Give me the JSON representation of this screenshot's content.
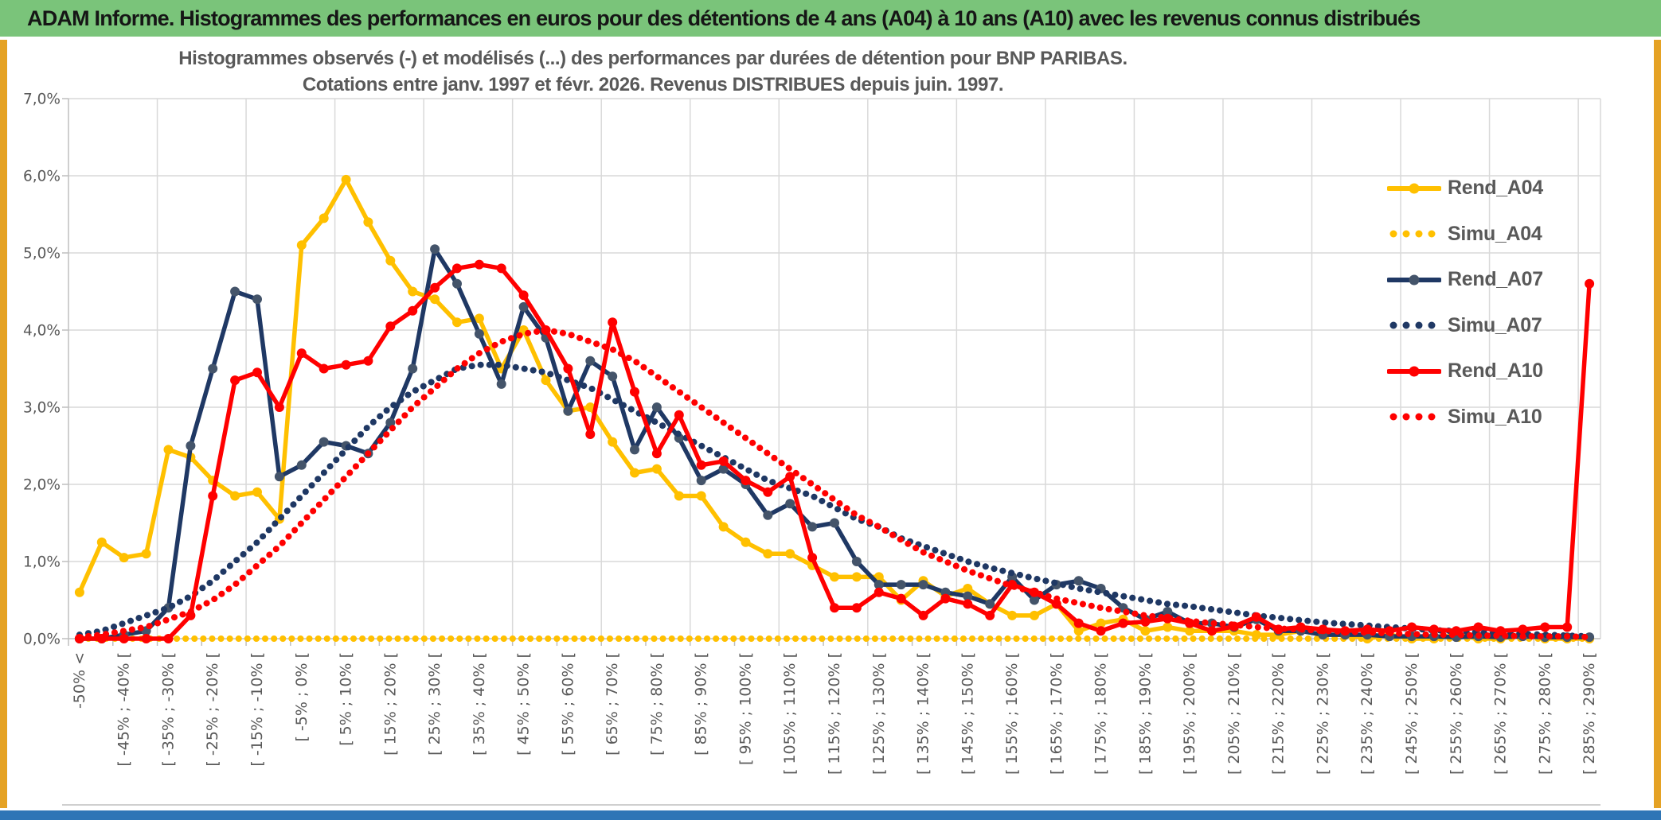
{
  "page": {
    "header_title": "ADAM Informe. Histogrammes des performances en euros pour des détentions de 4 ans (A04) à 10 ans (A10) avec les revenus connus distribués",
    "header_bg_color": "#7AC47A",
    "frame_color": "#E5A224",
    "footer_bar_color": "#2E75B6"
  },
  "chart_data": {
    "type": "line",
    "title_line1": "Histogrammes observés (-) et modélisés (...) des performances par durées de détention pour BNP PARIBAS.",
    "title_line2": "Cotations entre janv. 1997 et févr. 2026. Revenus DISTRIBUES depuis juin. 1997.",
    "ylabel": "",
    "xlabel": "",
    "ylim": [
      0,
      7
    ],
    "grid": true,
    "legend_position": "right",
    "y_ticks": [
      "7,0%",
      "6,0%",
      "5,0%",
      "4,0%",
      "3,0%",
      "2,0%",
      "1,0%",
      "0,0%"
    ],
    "x_bins_note": "69 bins of 5% width from below -50% up to 290%; a tick label is shown for every second bin",
    "n_points": 69,
    "x_tick_labels": [
      "-50% <",
      "[ -45% ; -40% [",
      "[ -35% ; -30% [",
      "[ -25% ; -20% [",
      "[ -15% ; -10% [",
      "[ -5% ; 0% [",
      "[ 5% ; 10% [",
      "[ 15% ; 20% [",
      "[ 25% ; 30% [",
      "[ 35% ; 40% [",
      "[ 45% ; 50% [",
      "[ 55% ; 60% [",
      "[ 65% ; 70% [",
      "[ 75% ; 80% [",
      "[ 85% ; 90% [",
      "[ 95% ; 100% [",
      "[ 105% ; 110% [",
      "[ 115% ; 120% [",
      "[ 125% ; 130% [",
      "[ 135% ; 140% [",
      "[ 145% ; 150% [",
      "[ 155% ; 160% [",
      "[ 165% ; 170% [",
      "[ 175% ; 180% [",
      "[ 185% ; 190% [",
      "[ 195% ; 200% [",
      "[ 205% ; 210% [",
      "[ 215% ; 220% [",
      "[ 225% ; 230% [",
      "[ 235% ; 240% [",
      "[ 245% ; 250% [",
      "[ 255% ; 260% [",
      "[ 265% ; 270% [",
      "[ 275% ; 280% [",
      "[ 285% ; 290% ["
    ],
    "grid_color": "#D9D9D9",
    "axis_color": "#BFBFBF",
    "text_color": "#595959",
    "series": [
      {
        "name": "Rend_A04",
        "style": "solid",
        "color": "#FFC000",
        "marker_color": "#FFC000",
        "values": [
          0.6,
          1.25,
          1.05,
          1.1,
          2.45,
          2.35,
          2.05,
          1.85,
          1.9,
          1.55,
          5.1,
          5.45,
          5.95,
          5.4,
          4.9,
          4.5,
          4.4,
          4.1,
          4.15,
          3.5,
          4.0,
          3.35,
          2.95,
          3.0,
          2.55,
          2.15,
          2.2,
          1.85,
          1.85,
          1.45,
          1.25,
          1.1,
          1.1,
          0.95,
          0.8,
          0.8,
          0.8,
          0.5,
          0.75,
          0.55,
          0.65,
          0.45,
          0.3,
          0.3,
          0.45,
          0.1,
          0.2,
          0.25,
          0.1,
          0.15,
          0.1,
          0.1,
          0.1,
          0.05,
          0.05,
          0.1,
          0.05,
          0.05,
          0.0,
          0.05,
          0.0,
          0.0,
          0.05,
          0.0,
          0.0,
          0.05,
          0.0,
          0.0,
          0.0
        ]
      },
      {
        "name": "Simu_A04",
        "style": "dotted",
        "color": "#FFC000",
        "marker_color": "#FFC000",
        "values": [
          0.0,
          0.0,
          0.0,
          0.0,
          0.0,
          0.0,
          0.0,
          0.0,
          0.0,
          0.0,
          0.0,
          0.0,
          0.0,
          0.0,
          0.0,
          0.0,
          0.0,
          0.0,
          0.0,
          0.0,
          0.0,
          0.0,
          0.0,
          0.0,
          0.0,
          0.0,
          0.0,
          0.0,
          0.0,
          0.0,
          0.0,
          0.0,
          0.0,
          0.0,
          0.0,
          0.0,
          0.0,
          0.0,
          0.0,
          0.0,
          0.0,
          0.0,
          0.0,
          0.0,
          0.0,
          0.0,
          0.0,
          0.0,
          0.0,
          0.0,
          0.0,
          0.0,
          0.0,
          0.0,
          0.0,
          0.0,
          0.0,
          0.0,
          0.0,
          0.0,
          0.0,
          0.0,
          0.0,
          0.0,
          0.0,
          0.0,
          0.0,
          0.0,
          0.0
        ]
      },
      {
        "name": "Rend_A07",
        "style": "solid",
        "color": "#1F3864",
        "marker_color": "#44546A",
        "values": [
          0.0,
          0.0,
          0.05,
          0.1,
          0.4,
          2.5,
          3.5,
          4.5,
          4.4,
          2.1,
          2.25,
          2.55,
          2.5,
          2.4,
          2.8,
          3.5,
          5.05,
          4.6,
          3.95,
          3.3,
          4.3,
          3.9,
          2.95,
          3.6,
          3.4,
          2.45,
          3.0,
          2.6,
          2.05,
          2.2,
          2.0,
          1.6,
          1.75,
          1.45,
          1.5,
          1.0,
          0.7,
          0.7,
          0.7,
          0.6,
          0.55,
          0.45,
          0.8,
          0.5,
          0.7,
          0.75,
          0.65,
          0.4,
          0.25,
          0.35,
          0.2,
          0.2,
          0.15,
          0.25,
          0.1,
          0.1,
          0.05,
          0.05,
          0.05,
          0.03,
          0.03,
          0.03,
          0.02,
          0.03,
          0.02,
          0.03,
          0.02,
          0.02,
          0.02
        ]
      },
      {
        "name": "Simu_A07",
        "style": "dotted",
        "color": "#1F3864",
        "marker_color": "#1F3864",
        "values": [
          0.05,
          0.1,
          0.2,
          0.3,
          0.4,
          0.55,
          0.75,
          1.0,
          1.25,
          1.55,
          1.85,
          2.15,
          2.45,
          2.75,
          3.0,
          3.2,
          3.35,
          3.5,
          3.55,
          3.55,
          3.5,
          3.45,
          3.35,
          3.25,
          3.1,
          2.95,
          2.8,
          2.65,
          2.5,
          2.35,
          2.2,
          2.05,
          1.95,
          1.85,
          1.7,
          1.55,
          1.45,
          1.3,
          1.2,
          1.1,
          1.0,
          0.92,
          0.85,
          0.78,
          0.72,
          0.65,
          0.6,
          0.55,
          0.5,
          0.45,
          0.42,
          0.38,
          0.34,
          0.3,
          0.27,
          0.24,
          0.21,
          0.19,
          0.17,
          0.15,
          0.13,
          0.11,
          0.1,
          0.08,
          0.07,
          0.06,
          0.05,
          0.04,
          0.03
        ]
      },
      {
        "name": "Rend_A10",
        "style": "solid",
        "color": "#FF0000",
        "marker_color": "#FF0000",
        "values": [
          0.0,
          0.0,
          0.0,
          0.0,
          0.0,
          0.3,
          1.85,
          3.35,
          3.45,
          3.0,
          3.7,
          3.5,
          3.55,
          3.6,
          4.05,
          4.25,
          4.55,
          4.8,
          4.85,
          4.8,
          4.45,
          4.0,
          3.5,
          2.65,
          4.1,
          3.2,
          2.4,
          2.9,
          2.25,
          2.3,
          2.05,
          1.9,
          2.1,
          1.05,
          0.4,
          0.4,
          0.6,
          0.52,
          0.3,
          0.52,
          0.45,
          0.3,
          0.7,
          0.6,
          0.45,
          0.2,
          0.1,
          0.2,
          0.22,
          0.26,
          0.2,
          0.1,
          0.16,
          0.28,
          0.12,
          0.15,
          0.12,
          0.1,
          0.12,
          0.1,
          0.15,
          0.12,
          0.1,
          0.15,
          0.1,
          0.12,
          0.15,
          0.15,
          4.6
        ]
      },
      {
        "name": "Simu_A10",
        "style": "dotted",
        "color": "#FF0000",
        "marker_color": "#FF0000",
        "values": [
          0.02,
          0.05,
          0.1,
          0.15,
          0.25,
          0.35,
          0.5,
          0.7,
          0.95,
          1.2,
          1.5,
          1.8,
          2.1,
          2.4,
          2.7,
          3.0,
          3.25,
          3.5,
          3.7,
          3.85,
          3.95,
          4.0,
          3.95,
          3.85,
          3.75,
          3.6,
          3.4,
          3.2,
          3.0,
          2.8,
          2.6,
          2.4,
          2.2,
          2.0,
          1.8,
          1.6,
          1.45,
          1.28,
          1.12,
          1.0,
          0.88,
          0.78,
          0.68,
          0.6,
          0.52,
          0.46,
          0.4,
          0.35,
          0.3,
          0.27,
          0.23,
          0.2,
          0.18,
          0.15,
          0.13,
          0.12,
          0.1,
          0.09,
          0.08,
          0.07,
          0.06,
          0.05,
          0.05,
          0.04,
          0.04,
          0.03,
          0.03,
          0.03,
          0.02
        ]
      }
    ]
  }
}
